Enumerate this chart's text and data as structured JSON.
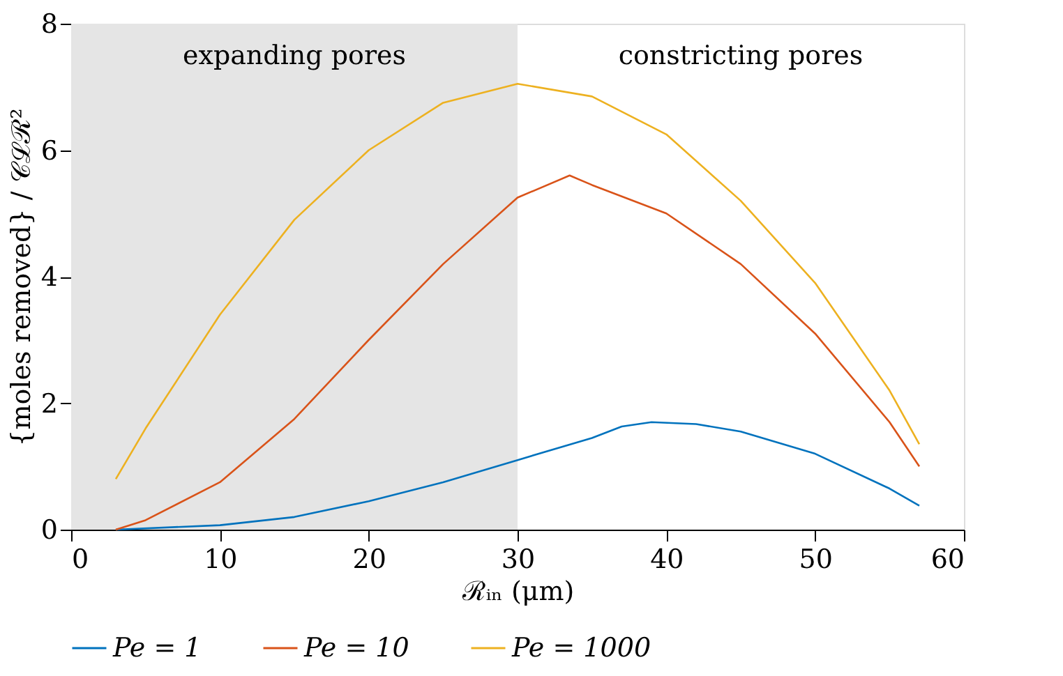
{
  "chart_data": {
    "type": "line",
    "xlabel": "ℛᵢₙ (μm)",
    "ylabel": "{moles removed} / 𝒞ℒℛ²",
    "xlim": [
      0,
      60
    ],
    "xticks": [
      0,
      10,
      20,
      30,
      40,
      50,
      60
    ],
    "ylim": [
      0,
      8
    ],
    "yticks": [
      0,
      2,
      4,
      6,
      8
    ],
    "grid": false,
    "legend": "bottom",
    "marker": "none",
    "line_style": "solid",
    "bands": [
      {
        "axis": "x",
        "from": 0,
        "to": 30,
        "label": "expanding pores",
        "color": "#e5e5e5"
      }
    ],
    "annotations": [
      "constricting pores"
    ],
    "series": [
      {
        "name": "Pe = 1",
        "color": "#0072bd",
        "x": [
          3,
          10,
          15,
          20,
          25,
          30,
          35,
          37,
          39,
          42,
          45,
          50,
          55,
          57
        ],
        "values": [
          0,
          0.07,
          0.2,
          0.45,
          0.75,
          1.1,
          1.45,
          1.63,
          1.7,
          1.67,
          1.55,
          1.2,
          0.65,
          0.38
        ]
      },
      {
        "name": "Pe = 10",
        "color": "#d95319",
        "x": [
          3,
          5,
          10,
          15,
          20,
          25,
          30,
          33.5,
          35,
          40,
          45,
          50,
          55,
          57
        ],
        "values": [
          0,
          0.15,
          0.75,
          1.75,
          3.0,
          4.2,
          5.25,
          5.6,
          5.45,
          5.0,
          4.2,
          3.1,
          1.7,
          1.0
        ]
      },
      {
        "name": "Pe = 1000",
        "color": "#edb120",
        "x": [
          3,
          5,
          10,
          15,
          20,
          25,
          30,
          35,
          40,
          45,
          50,
          55,
          57
        ],
        "values": [
          0.8,
          1.6,
          3.4,
          4.9,
          6.0,
          6.75,
          7.05,
          6.85,
          6.25,
          5.2,
          3.9,
          2.2,
          1.35
        ]
      }
    ]
  }
}
